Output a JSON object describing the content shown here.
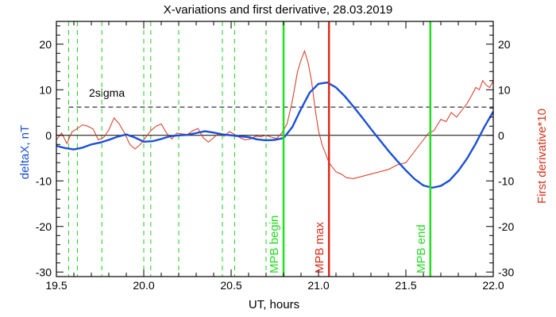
{
  "chart_data": {
    "type": "line",
    "title": "X-variations and first derivative, 28.03.2019",
    "xlabel": "UT, hours",
    "ylabel_left": "deltaX, nT",
    "ylabel_right": "First derivative*10",
    "xlim": [
      19.5,
      22.0
    ],
    "ylim": [
      -31,
      25
    ],
    "x_ticks": [
      19.5,
      20.0,
      20.5,
      21.0,
      21.5,
      22.0
    ],
    "x_tick_labels": [
      "19.5",
      "20.0",
      "20.5",
      "21.0",
      "21.5",
      "22.0"
    ],
    "y_ticks": [
      -30,
      -20,
      -10,
      0,
      10,
      20
    ],
    "y_tick_labels": [
      "-30",
      "-20",
      "-10",
      "0",
      "10",
      "20"
    ],
    "grid": false,
    "colors": {
      "deltaX": "#1a4fd6",
      "derivative": "#d8331c",
      "mpb_begin_end": "#22dd22",
      "mpb_max": "#dd2a1a",
      "dashed_lines": "#22cc22"
    },
    "reference_lines": {
      "zero": 0,
      "two_sigma": {
        "value": 6.2,
        "label": "2sigma"
      }
    },
    "green_dashed_x": [
      19.57,
      19.62,
      19.76,
      20.0,
      20.04,
      20.2,
      20.45,
      20.52,
      20.7
    ],
    "markers": [
      {
        "label": "MPB begin",
        "x": 20.8
      },
      {
        "label": "MPB max",
        "x": 21.06
      },
      {
        "label": "MPB end",
        "x": 21.64
      }
    ],
    "series": [
      {
        "key": "deltaX",
        "x": [
          19.5,
          19.55,
          19.6,
          19.65,
          19.7,
          19.75,
          19.8,
          19.85,
          19.9,
          19.95,
          20.0,
          20.05,
          20.1,
          20.15,
          20.2,
          20.25,
          20.3,
          20.35,
          20.4,
          20.45,
          20.5,
          20.55,
          20.6,
          20.65,
          20.7,
          20.75,
          20.8,
          20.85,
          20.9,
          20.95,
          21.0,
          21.05,
          21.1,
          21.15,
          21.2,
          21.25,
          21.3,
          21.35,
          21.4,
          21.45,
          21.5,
          21.55,
          21.6,
          21.65,
          21.7,
          21.75,
          21.8,
          21.85,
          21.9,
          21.95,
          22.0
        ],
        "values": [
          -2.3,
          -2.8,
          -3.1,
          -2.7,
          -2.0,
          -1.6,
          -1.0,
          -0.3,
          0.2,
          -0.5,
          -1.4,
          -1.3,
          -0.8,
          -0.2,
          0.0,
          0.1,
          0.5,
          0.9,
          0.6,
          0.2,
          0.0,
          -0.2,
          -0.4,
          -0.9,
          -1.1,
          -1.0,
          -0.6,
          1.8,
          5.8,
          9.4,
          11.3,
          11.6,
          10.5,
          8.6,
          6.3,
          3.9,
          1.4,
          -1.0,
          -3.4,
          -5.6,
          -7.7,
          -9.6,
          -11.0,
          -11.5,
          -11.1,
          -9.9,
          -7.8,
          -5.1,
          -1.8,
          1.9,
          5.2
        ]
      },
      {
        "key": "derivative",
        "x": [
          19.5,
          19.53,
          19.56,
          19.59,
          19.62,
          19.65,
          19.68,
          19.71,
          19.74,
          19.77,
          19.8,
          19.83,
          19.86,
          19.89,
          19.92,
          19.95,
          19.98,
          20.01,
          20.04,
          20.07,
          20.1,
          20.13,
          20.16,
          20.19,
          20.22,
          20.25,
          20.28,
          20.31,
          20.34,
          20.37,
          20.4,
          20.43,
          20.46,
          20.49,
          20.52,
          20.55,
          20.58,
          20.61,
          20.64,
          20.67,
          20.7,
          20.73,
          20.76,
          20.79,
          20.82,
          20.85,
          20.88,
          20.9,
          20.92,
          20.94,
          20.96,
          20.98,
          21.0,
          21.02,
          21.04,
          21.06,
          21.08,
          21.1,
          21.13,
          21.16,
          21.2,
          21.25,
          21.3,
          21.35,
          21.4,
          21.45,
          21.5,
          21.55,
          21.6,
          21.63,
          21.66,
          21.7,
          21.73,
          21.76,
          21.79,
          21.82,
          21.85,
          21.88,
          21.9,
          21.92,
          21.94,
          21.96,
          21.98,
          22.0
        ],
        "values": [
          -1.0,
          0.5,
          -1.8,
          0.8,
          1.5,
          2.3,
          2.0,
          1.4,
          -1.0,
          -0.5,
          1.2,
          3.8,
          2.5,
          0.5,
          -2.0,
          -3.0,
          -2.0,
          -0.5,
          1.0,
          2.0,
          2.5,
          0.5,
          -0.8,
          0.5,
          0.3,
          0.2,
          1.0,
          1.5,
          -0.5,
          -1.5,
          -0.5,
          0.5,
          -0.2,
          0.8,
          0.2,
          -0.5,
          -1.0,
          -0.8,
          -0.2,
          -0.3,
          0.0,
          -0.4,
          -0.7,
          0.5,
          2.5,
          7.5,
          14.0,
          16.5,
          18.5,
          16.0,
          12.0,
          6.0,
          1.0,
          -2.0,
          -4.0,
          -6.0,
          -7.0,
          -8.0,
          -8.5,
          -9.3,
          -9.5,
          -9.0,
          -8.5,
          -8.0,
          -7.5,
          -6.5,
          -6.0,
          -3.5,
          -1.0,
          0.5,
          1.0,
          3.5,
          3.0,
          5.0,
          4.0,
          5.5,
          7.0,
          9.0,
          10.5,
          10.0,
          12.0,
          11.0,
          10.5,
          12.0
        ]
      }
    ]
  }
}
